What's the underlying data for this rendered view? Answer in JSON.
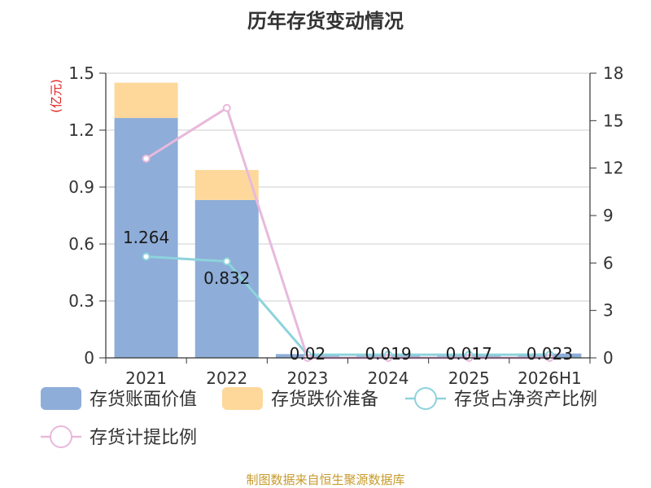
{
  "chart_data": {
    "type": "bar",
    "title": "历年存货变动情况",
    "left_unit": "(亿元)",
    "categories": [
      "2021",
      "2022",
      "2023",
      "2024",
      "2025",
      "2026H1"
    ],
    "series": [
      {
        "name": "存货账面价值",
        "type": "bar",
        "axis": "left",
        "color": "#8eadd8",
        "values": [
          1.264,
          0.832,
          0.02,
          0.019,
          0.017,
          0.023
        ]
      },
      {
        "name": "存货跌价准备",
        "type": "bar",
        "axis": "left",
        "color": "#fdd89a",
        "values": [
          0.186,
          0.158,
          0,
          0,
          0,
          0
        ]
      },
      {
        "name": "存货占净资产比例",
        "type": "line",
        "axis": "right",
        "color": "#8dd3dc",
        "values": [
          6.4,
          6.1,
          0.2,
          0.2,
          0.2,
          0.2
        ]
      },
      {
        "name": "存货计提比例",
        "type": "line",
        "axis": "right",
        "color": "#e8b9dc",
        "values": [
          12.6,
          15.8,
          0,
          0,
          0,
          0
        ]
      }
    ],
    "data_labels": [
      "1.264",
      "0.832",
      "0.02",
      "0.019",
      "0.017",
      "0.023"
    ],
    "y_left": {
      "min": 0,
      "max": 1.5,
      "ticks": [
        "0",
        "0.3",
        "0.6",
        "0.9",
        "1.2",
        "1.5"
      ]
    },
    "y_right": {
      "min": 0,
      "max": 18,
      "ticks": [
        "0",
        "3",
        "6",
        "9",
        "12",
        "15",
        "18"
      ]
    },
    "grid": true,
    "legend_position": "bottom"
  },
  "footer": {
    "source": "制图数据来自恒生聚源数据库"
  }
}
